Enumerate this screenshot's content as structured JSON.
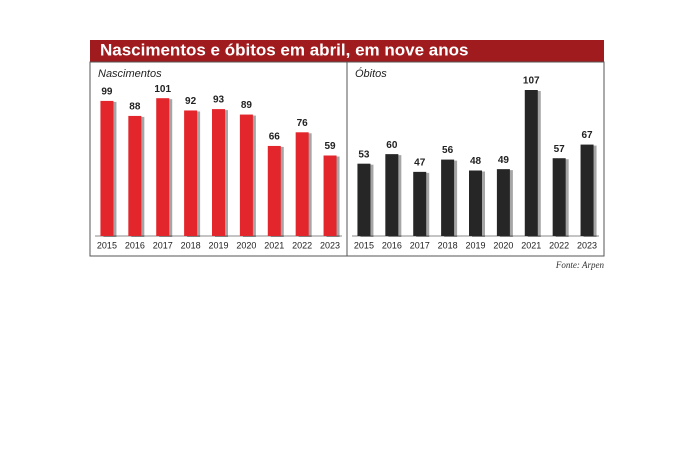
{
  "title": "Nascimentos e óbitos em abril, em nove anos",
  "source": "Fonte: Arpen",
  "chart_data": [
    {
      "type": "bar",
      "title": "Nascimentos",
      "categories": [
        "2015",
        "2016",
        "2017",
        "2018",
        "2019",
        "2020",
        "2021",
        "2022",
        "2023"
      ],
      "values": [
        99,
        88,
        101,
        92,
        93,
        89,
        66,
        76,
        59
      ],
      "color": "#e3262c"
    },
    {
      "type": "bar",
      "title": "Óbitos",
      "categories": [
        "2015",
        "2016",
        "2017",
        "2018",
        "2019",
        "2020",
        "2021",
        "2022",
        "2023"
      ],
      "values": [
        53,
        60,
        47,
        56,
        48,
        49,
        107,
        57,
        67
      ],
      "color": "#262626"
    }
  ]
}
